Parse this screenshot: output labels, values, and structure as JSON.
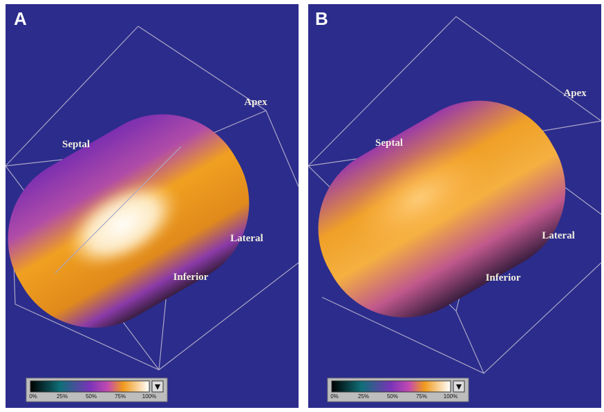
{
  "panels": [
    {
      "letter": "A",
      "labels": [
        "Septal",
        "Apex",
        "Lateral",
        "Inferior"
      ],
      "colorbar_ticks": [
        "0%",
        "25%",
        "50%",
        "75%",
        "100%"
      ]
    },
    {
      "letter": "B",
      "labels": [
        "Septal",
        "Apex",
        "Lateral",
        "Inferior"
      ],
      "colorbar_ticks": [
        "0%",
        "25%",
        "50%",
        "75%",
        "100%"
      ]
    }
  ]
}
